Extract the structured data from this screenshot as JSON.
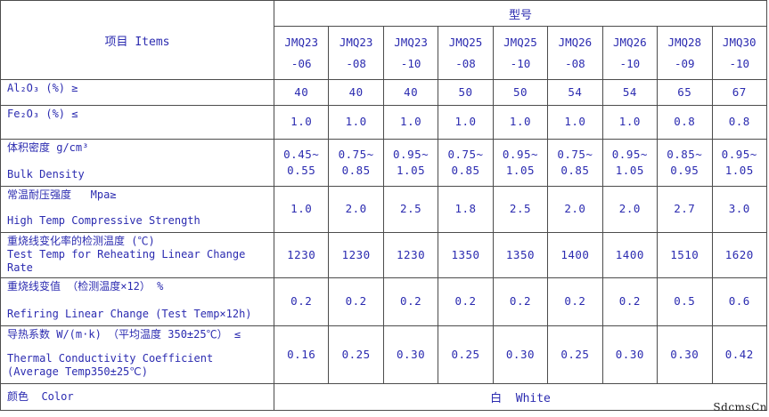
{
  "page": {
    "background": "#ffffff",
    "text_color": "#2b2bb0",
    "grid_color": "#4c4c4c",
    "watermark": "SdcmsCn"
  },
  "table": {
    "items_header": "项目 Items",
    "model_header": "型号",
    "models": [
      {
        "series": "JMQ23",
        "grade": "-06"
      },
      {
        "series": "JMQ23",
        "grade": "-08"
      },
      {
        "series": "JMQ23",
        "grade": "-10"
      },
      {
        "series": "JMQ25",
        "grade": "-08"
      },
      {
        "series": "JMQ25",
        "grade": "-10"
      },
      {
        "series": "JMQ26",
        "grade": "-08"
      },
      {
        "series": "JMQ26",
        "grade": "-10"
      },
      {
        "series": "JMQ28",
        "grade": "-09"
      },
      {
        "series": "JMQ30",
        "grade": "-10"
      }
    ],
    "rows": {
      "al2o3": {
        "label_zh": "Al₂O₃ (%) ≥",
        "values": [
          "40",
          "40",
          "40",
          "50",
          "50",
          "54",
          "54",
          "65",
          "67"
        ]
      },
      "fe2o3": {
        "label_zh": "Fe₂O₃ (%) ≤",
        "values": [
          "1.0",
          "1.0",
          "1.0",
          "1.0",
          "1.0",
          "1.0",
          "1.0",
          "0.8",
          "0.8"
        ]
      },
      "density": {
        "label_zh": "体积密度 g/cm³",
        "label_en": "Bulk Density",
        "values": [
          "0.45~\n0.55",
          "0.75~\n0.85",
          "0.95~\n1.05",
          "0.75~\n0.85",
          "0.95~\n1.05",
          "0.75~\n0.85",
          "0.95~\n1.05",
          "0.85~\n0.95",
          "0.95~\n1.05"
        ]
      },
      "strength": {
        "label_zh": "常温耐压强度   Mpa≥",
        "label_en": "High Temp Compressive Strength",
        "values": [
          "1.0",
          "2.0",
          "2.5",
          "1.8",
          "2.5",
          "2.0",
          "2.0",
          "2.7",
          "3.0"
        ]
      },
      "reheat_temp": {
        "label_zh": "重烧线变化率的检测温度 (℃)",
        "label_en": "Test Temp for Reheating Linear Change Rate",
        "values": [
          "1230",
          "1230",
          "1230",
          "1350",
          "1350",
          "1400",
          "1400",
          "1510",
          "1620"
        ]
      },
      "refiring": {
        "label_zh": "重烧线变值 （检测温度×12） %",
        "label_en": "Refiring Linear Change (Test Temp×12h)",
        "values": [
          "0.2",
          "0.2",
          "0.2",
          "0.2",
          "0.2",
          "0.2",
          "0.2",
          "0.5",
          "0.6"
        ]
      },
      "thermal": {
        "label_zh": "导热系数 W/(m·k) （平均温度 350±25℃） ≤",
        "label_en": "Thermal Conductivity Coefficient (Average Temp350±25℃)",
        "values": [
          "0.16",
          "0.25",
          "0.30",
          "0.25",
          "0.30",
          "0.25",
          "0.30",
          "0.30",
          "0.42"
        ]
      },
      "color": {
        "label_zh": "颜色  Color",
        "value": "白  White"
      }
    }
  }
}
